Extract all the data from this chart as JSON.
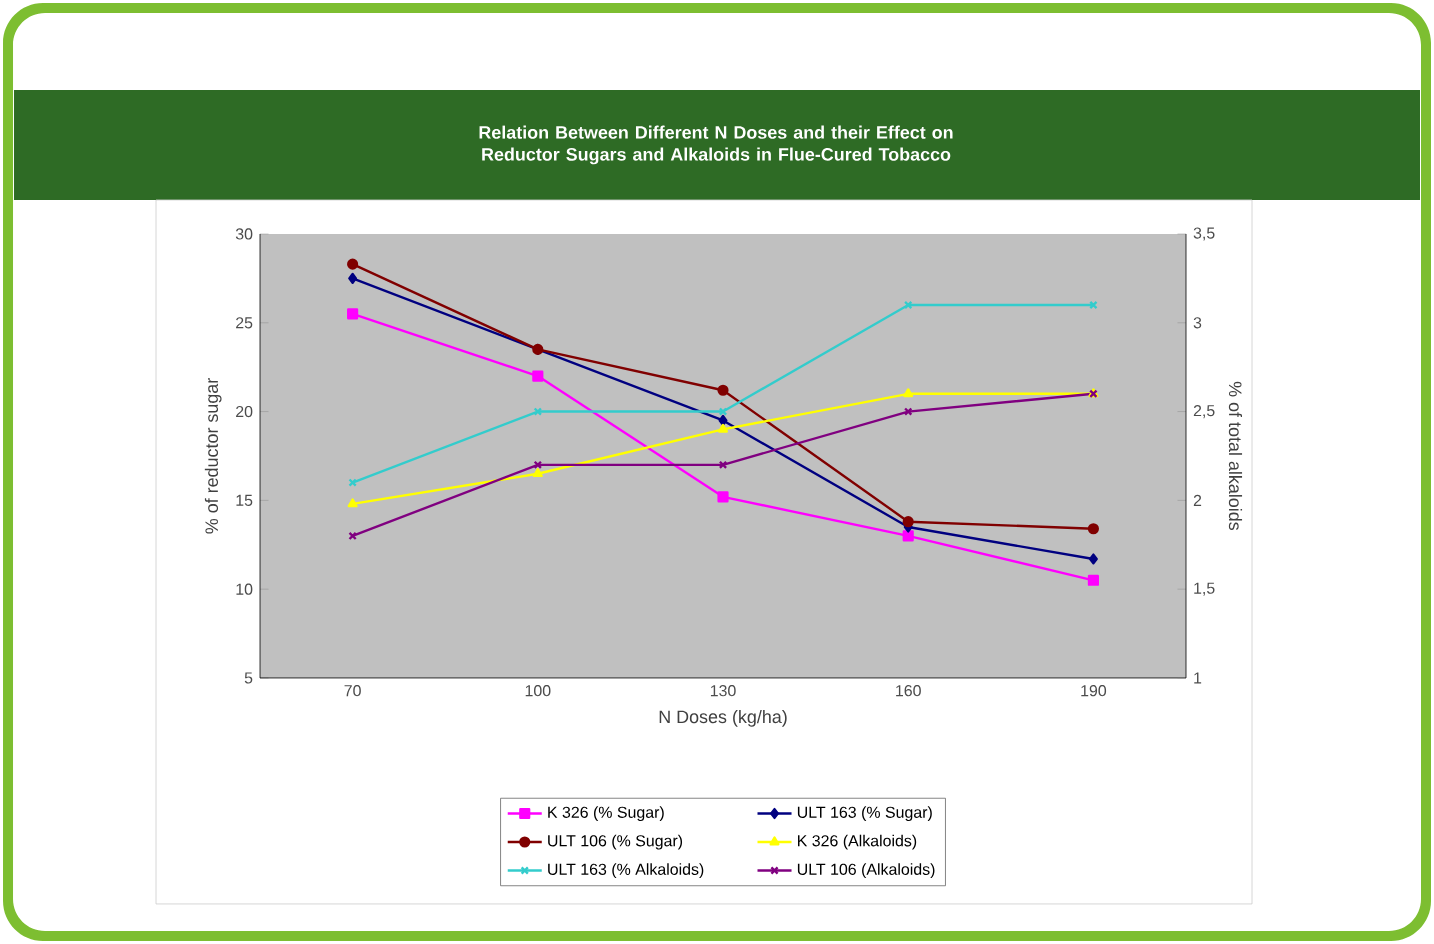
{
  "chart_data": {
    "type": "line",
    "title": "Relation Between Different N Doses and their Effect on Reductor Sugars and Alkaloids in Flue-Cured Tobacco",
    "xlabel": "N Doses (kg/ha)",
    "ylabel": "% of reductor sugar",
    "y2label": "% of total alkaloids",
    "categories": [
      "70",
      "100",
      "130",
      "160",
      "190"
    ],
    "ylim": [
      5,
      30
    ],
    "yticks": [
      5,
      10,
      15,
      20,
      25,
      30
    ],
    "y2lim": [
      1,
      3.5
    ],
    "y2ticks": [
      1,
      {
        "value": 1.5,
        "label": "1,5"
      },
      2,
      {
        "value": 2.5,
        "label": "2,5"
      },
      3,
      {
        "value": 3.5,
        "label": "3,5"
      }
    ],
    "legend": "bottom",
    "grid": false,
    "series": [
      {
        "name": "K 326 (% Sugar)",
        "color": "#ff00ff",
        "marker": "square",
        "values": [
          25.5,
          22,
          15.2,
          13,
          10.5
        ]
      },
      {
        "name": "ULT 163 (% Sugar)",
        "color": "#000080",
        "marker": "diamond",
        "values": [
          27.5,
          23.5,
          19.5,
          13.5,
          11.7
        ]
      },
      {
        "name": "ULT 106 (% Sugar)",
        "color": "#800000",
        "marker": "circle",
        "values": [
          28.3,
          23.5,
          21.2,
          13.8,
          13.4
        ]
      },
      {
        "name": "K 326 (Alkaloids)",
        "color": "#ffff00",
        "marker": "triangle",
        "axis": "y2",
        "values": [
          1.98,
          2.15,
          2.4,
          2.6,
          2.6
        ]
      },
      {
        "name": "ULT 163 (% Alkaloids)",
        "color": "#33cccc",
        "marker": "cross",
        "axis": "y2",
        "values": [
          2.1,
          2.5,
          2.5,
          3.1,
          3.1
        ]
      },
      {
        "name": "ULT 106 (Alkaloids)",
        "color": "#800080",
        "marker": "cross",
        "axis": "y2",
        "values": [
          1.8,
          2.2,
          2.2,
          2.5,
          2.6
        ]
      }
    ]
  }
}
